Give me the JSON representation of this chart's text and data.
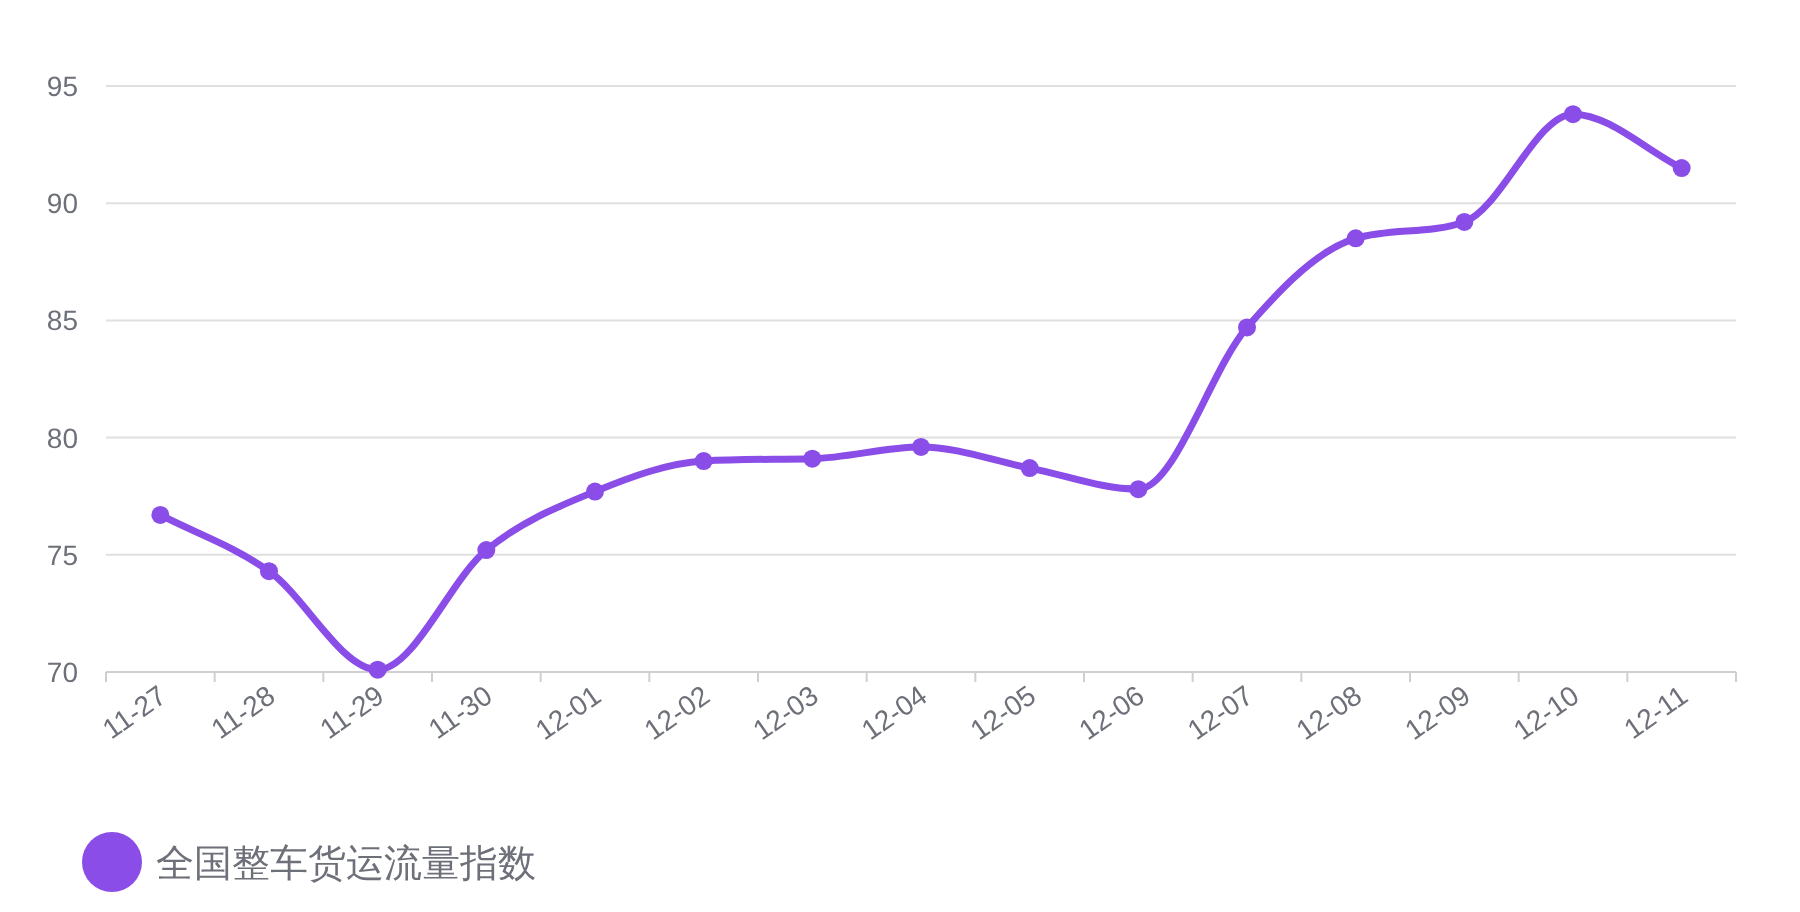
{
  "chart_data": {
    "type": "line",
    "categories": [
      "11-27",
      "11-28",
      "11-29",
      "11-30",
      "12-01",
      "12-02",
      "12-03",
      "12-04",
      "12-05",
      "12-06",
      "12-07",
      "12-08",
      "12-09",
      "12-10",
      "12-11"
    ],
    "series": [
      {
        "name": "全国整车货运流量指数",
        "color": "#8a4de8",
        "values": [
          76.7,
          74.3,
          70.1,
          75.2,
          77.7,
          79.0,
          79.1,
          79.6,
          78.7,
          77.8,
          84.7,
          88.5,
          89.2,
          93.8,
          91.5
        ]
      }
    ],
    "ylim": [
      70,
      95
    ],
    "yticks": [
      70,
      75,
      80,
      85,
      90,
      95
    ],
    "grid": "y",
    "legend": "bottom",
    "marker": "circle",
    "line_style": "solid"
  }
}
